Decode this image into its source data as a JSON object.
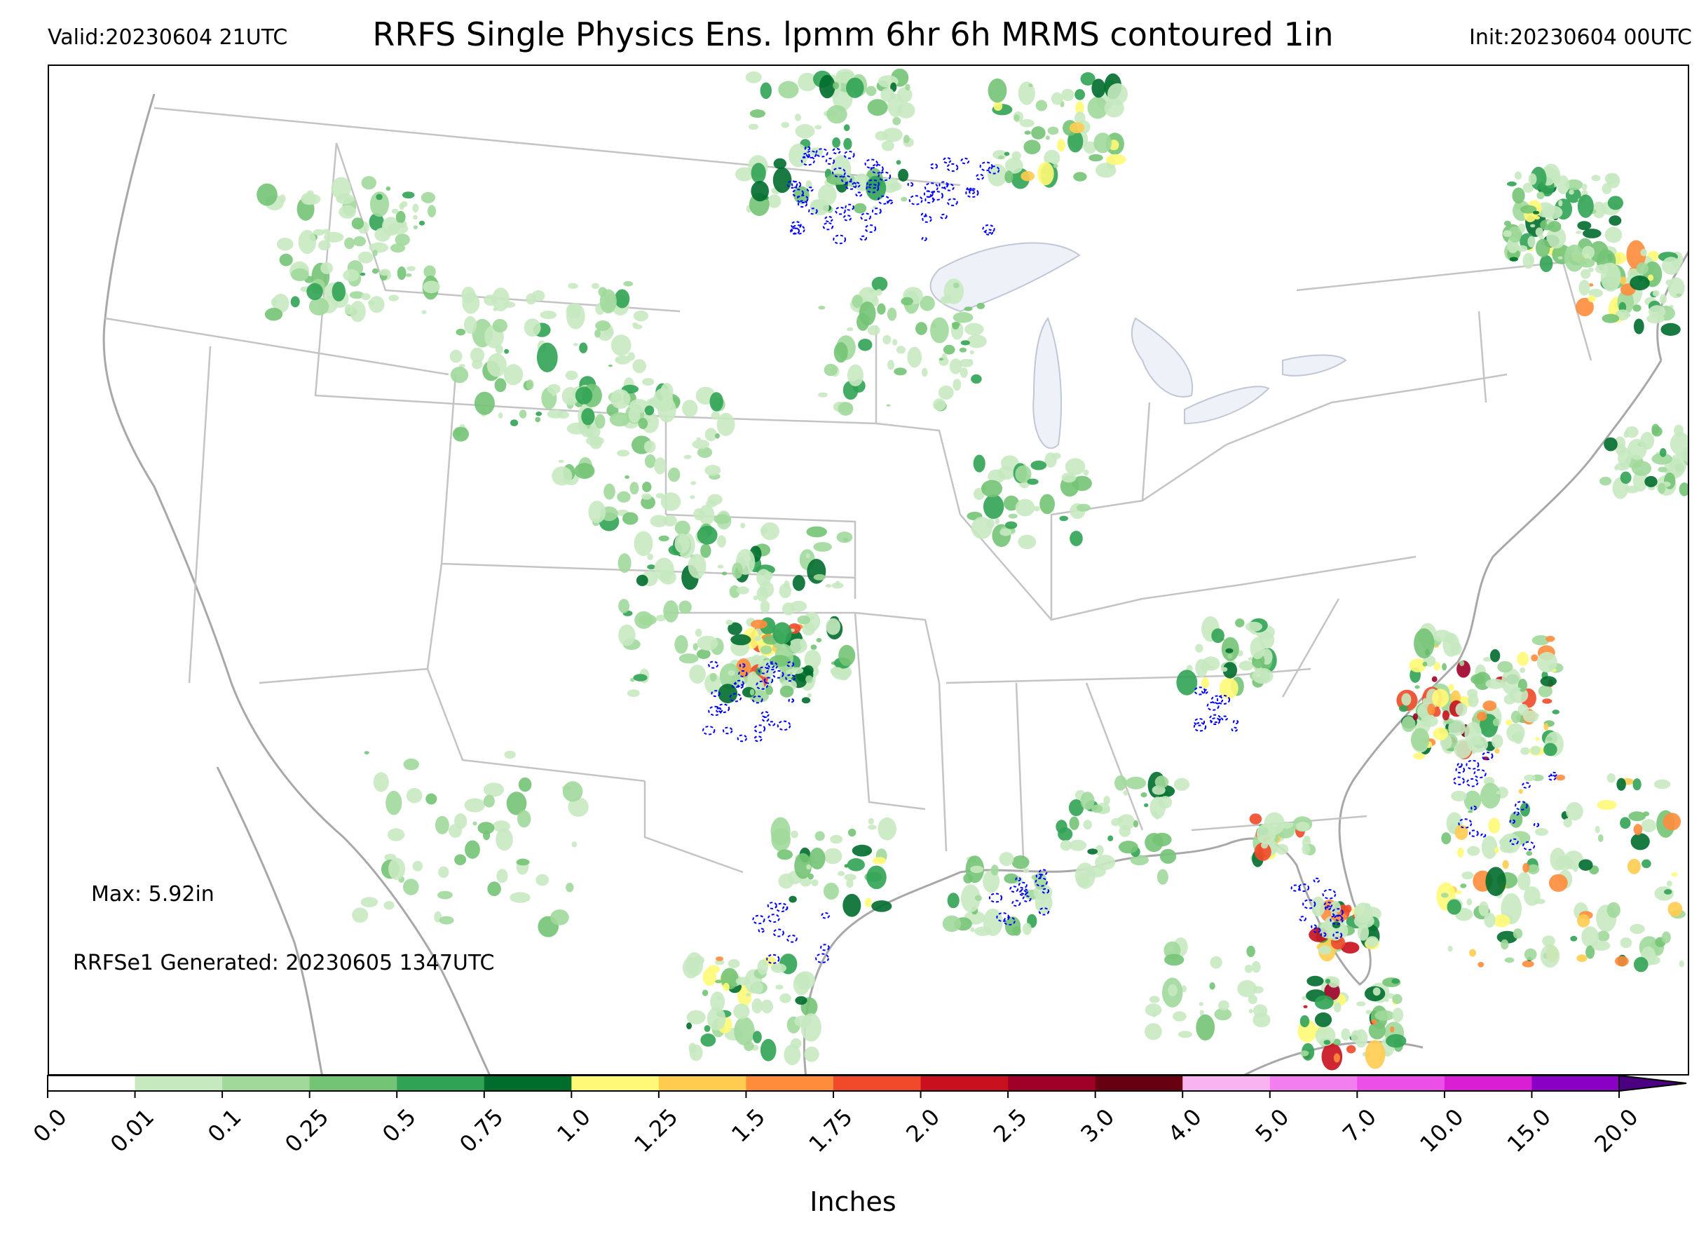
{
  "header": {
    "valid": "Valid:20230604 21UTC",
    "title": "RRFS Single Physics Ens. lpmm 6hr 6h MRMS contoured 1in",
    "init": "Init:20230604 00UTC"
  },
  "annotations": {
    "max": "Max: 5.92in",
    "generated": "RRFSe1 Generated: 20230605 1347UTC"
  },
  "colorbar": {
    "title": "Inches",
    "extend": "max",
    "ticks": [
      "0.0",
      "0.01",
      "0.1",
      "0.25",
      "0.5",
      "0.75",
      "1.0",
      "1.25",
      "1.5",
      "1.75",
      "2.0",
      "2.5",
      "3.0",
      "4.0",
      "5.0",
      "7.0",
      "10.0",
      "15.0",
      "20.0"
    ],
    "colors": [
      "#ffffff",
      "#c7e9c0",
      "#a1d99b",
      "#74c476",
      "#31a354",
      "#006d2c",
      "#fff977",
      "#ffcc50",
      "#ff8c3b",
      "#f04a2a",
      "#c8101e",
      "#a00028",
      "#670010",
      "#f9b3f1",
      "#f27ef0",
      "#ec4ee8",
      "#d91ed4",
      "#8a00c4"
    ],
    "extend_color": "#4b0082"
  },
  "map": {
    "region": "CONUS",
    "contour_threshold_in": 1,
    "contour_color": "#0000ff",
    "lakes_color": "#eef2f8",
    "boundary_color": "#b0b0b0"
  }
}
